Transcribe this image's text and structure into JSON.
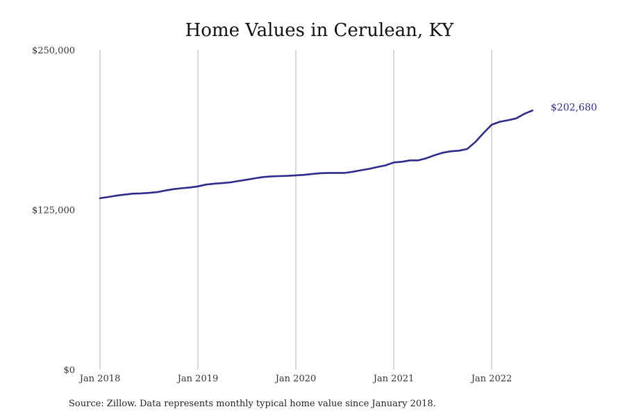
{
  "chart_data": {
    "type": "line",
    "title": "Home Values in Cerulean, KY",
    "source": "Source: Zillow. Data represents monthly typical home value since January 2018.",
    "ylim": [
      0,
      250000
    ],
    "y_ticks": [
      {
        "value": 0,
        "label": "$0"
      },
      {
        "value": 125000,
        "label": "$125,000"
      },
      {
        "value": 250000,
        "label": "$250,000"
      }
    ],
    "x_ticks": [
      {
        "value": 0,
        "label": "Jan 2018"
      },
      {
        "value": 12,
        "label": "Jan 2019"
      },
      {
        "value": 24,
        "label": "Jan 2020"
      },
      {
        "value": 36,
        "label": "Jan 2021"
      },
      {
        "value": 48,
        "label": "Jan 2022"
      }
    ],
    "grid": "vertical",
    "line_color": "#2e2a8c",
    "end_label": "$202,680",
    "series": [
      {
        "values": [
          134000,
          135000,
          136000,
          136800,
          137600,
          137800,
          138200,
          138800,
          140000,
          141100,
          141800,
          142400,
          143300,
          144700,
          145400,
          145800,
          146400,
          147500,
          148500,
          149600,
          150600,
          151100,
          151300,
          151500,
          151900,
          152300,
          153000,
          153600,
          153800,
          153800,
          153800,
          154700,
          155900,
          157000,
          158400,
          159700,
          162000,
          162500,
          163600,
          163600,
          165300,
          167600,
          169600,
          170700,
          171200,
          172500,
          178000,
          185000,
          191500,
          193800,
          195000,
          196400,
          200000,
          202680
        ]
      }
    ]
  }
}
